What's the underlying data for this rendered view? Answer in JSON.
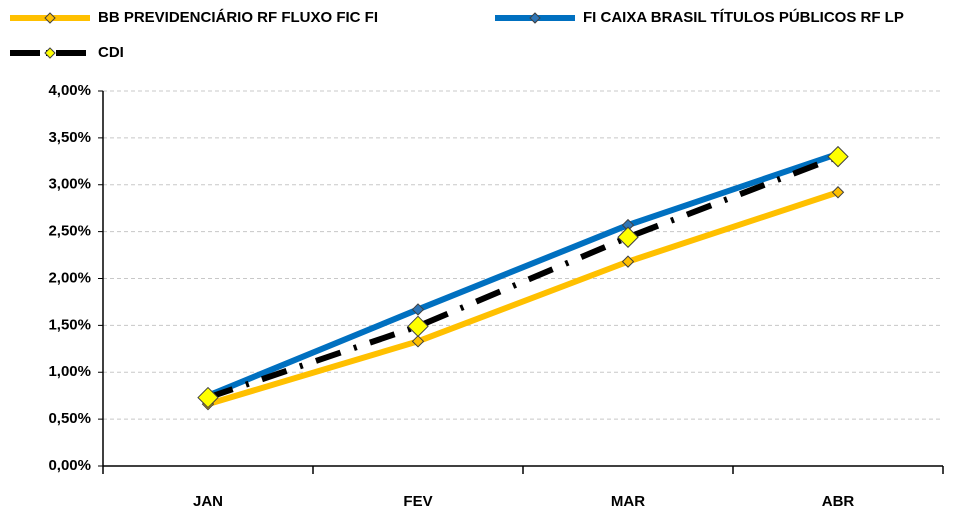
{
  "chart_data": {
    "type": "line",
    "categories": [
      "JAN",
      "FEV",
      "MAR",
      "ABR"
    ],
    "series": [
      {
        "name": "BB PREVIDENCIÁRIO RF FLUXO FIC FI",
        "color": "#FFC000",
        "marker_color": "#FFC000",
        "marker": "small",
        "style": "solid",
        "values": [
          0.66,
          1.33,
          2.18,
          2.92
        ]
      },
      {
        "name": "FI CAIXA BRASIL TÍTULOS PÚBLICOS RF LP",
        "color": "#0070C0",
        "marker_color": "#2E75B6",
        "marker": "small",
        "style": "solid",
        "values": [
          0.75,
          1.67,
          2.57,
          3.33
        ]
      },
      {
        "name": "CDI",
        "color": "#000000",
        "marker_color": "#FFFF00",
        "marker": "large",
        "style": "dash-dot",
        "values": [
          0.73,
          1.49,
          2.44,
          3.3
        ]
      }
    ],
    "ylim": [
      0,
      4
    ],
    "yticks": [
      {
        "value": 0,
        "label": "0,00%"
      },
      {
        "value": 0.5,
        "label": "0,50%"
      },
      {
        "value": 1,
        "label": "1,00%"
      },
      {
        "value": 1.5,
        "label": "1,50%"
      },
      {
        "value": 2,
        "label": "2,00%"
      },
      {
        "value": 2.5,
        "label": "2,50%"
      },
      {
        "value": 3,
        "label": "3,00%"
      },
      {
        "value": 3.5,
        "label": "3,50%"
      },
      {
        "value": 4,
        "label": "4,00%"
      }
    ],
    "grid": true,
    "legend": "top"
  }
}
